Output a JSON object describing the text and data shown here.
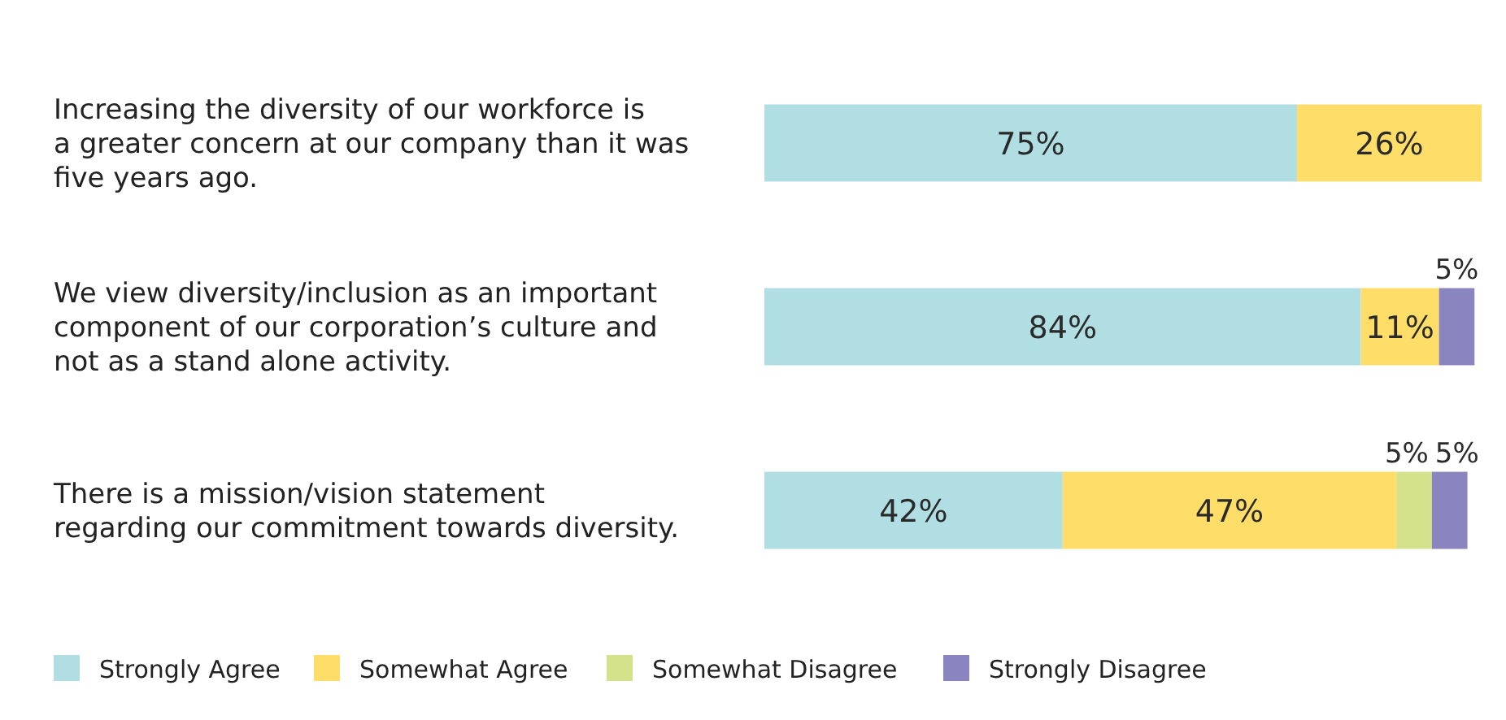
{
  "chart_data": {
    "type": "bar",
    "orientation": "horizontal",
    "stacked": true,
    "tick_labels": "y",
    "grid": false,
    "legend": "bottom",
    "categories": [
      "Increasing the diversity of our workforce is a greater concern at our company than it was five years ago.",
      "We view diversity/inclusion as an important component of our corporation’s culture and not as a stand alone activity.",
      "There is a mission/vision statement regarding our commitment towards diversity."
    ],
    "series": [
      {
        "name": "Strongly Agree",
        "color": "#b0dee3",
        "values": [
          75,
          84,
          42
        ],
        "value_labels": [
          "75%",
          "84%",
          "42%"
        ]
      },
      {
        "name": "Somewhat Agree",
        "color": "#fedd69",
        "values": [
          26,
          11,
          47
        ],
        "value_labels": [
          "26%",
          "11%",
          "47%"
        ]
      },
      {
        "name": "Somewhat Disagree",
        "color": "#d4e38b",
        "values": [
          null,
          null,
          5
        ],
        "value_labels": [
          null,
          null,
          "5%"
        ]
      },
      {
        "name": "Strongly Disagree",
        "color": "#8b85bf",
        "values": [
          null,
          5,
          5
        ],
        "value_labels": [
          null,
          "5%",
          "5%"
        ]
      }
    ]
  }
}
